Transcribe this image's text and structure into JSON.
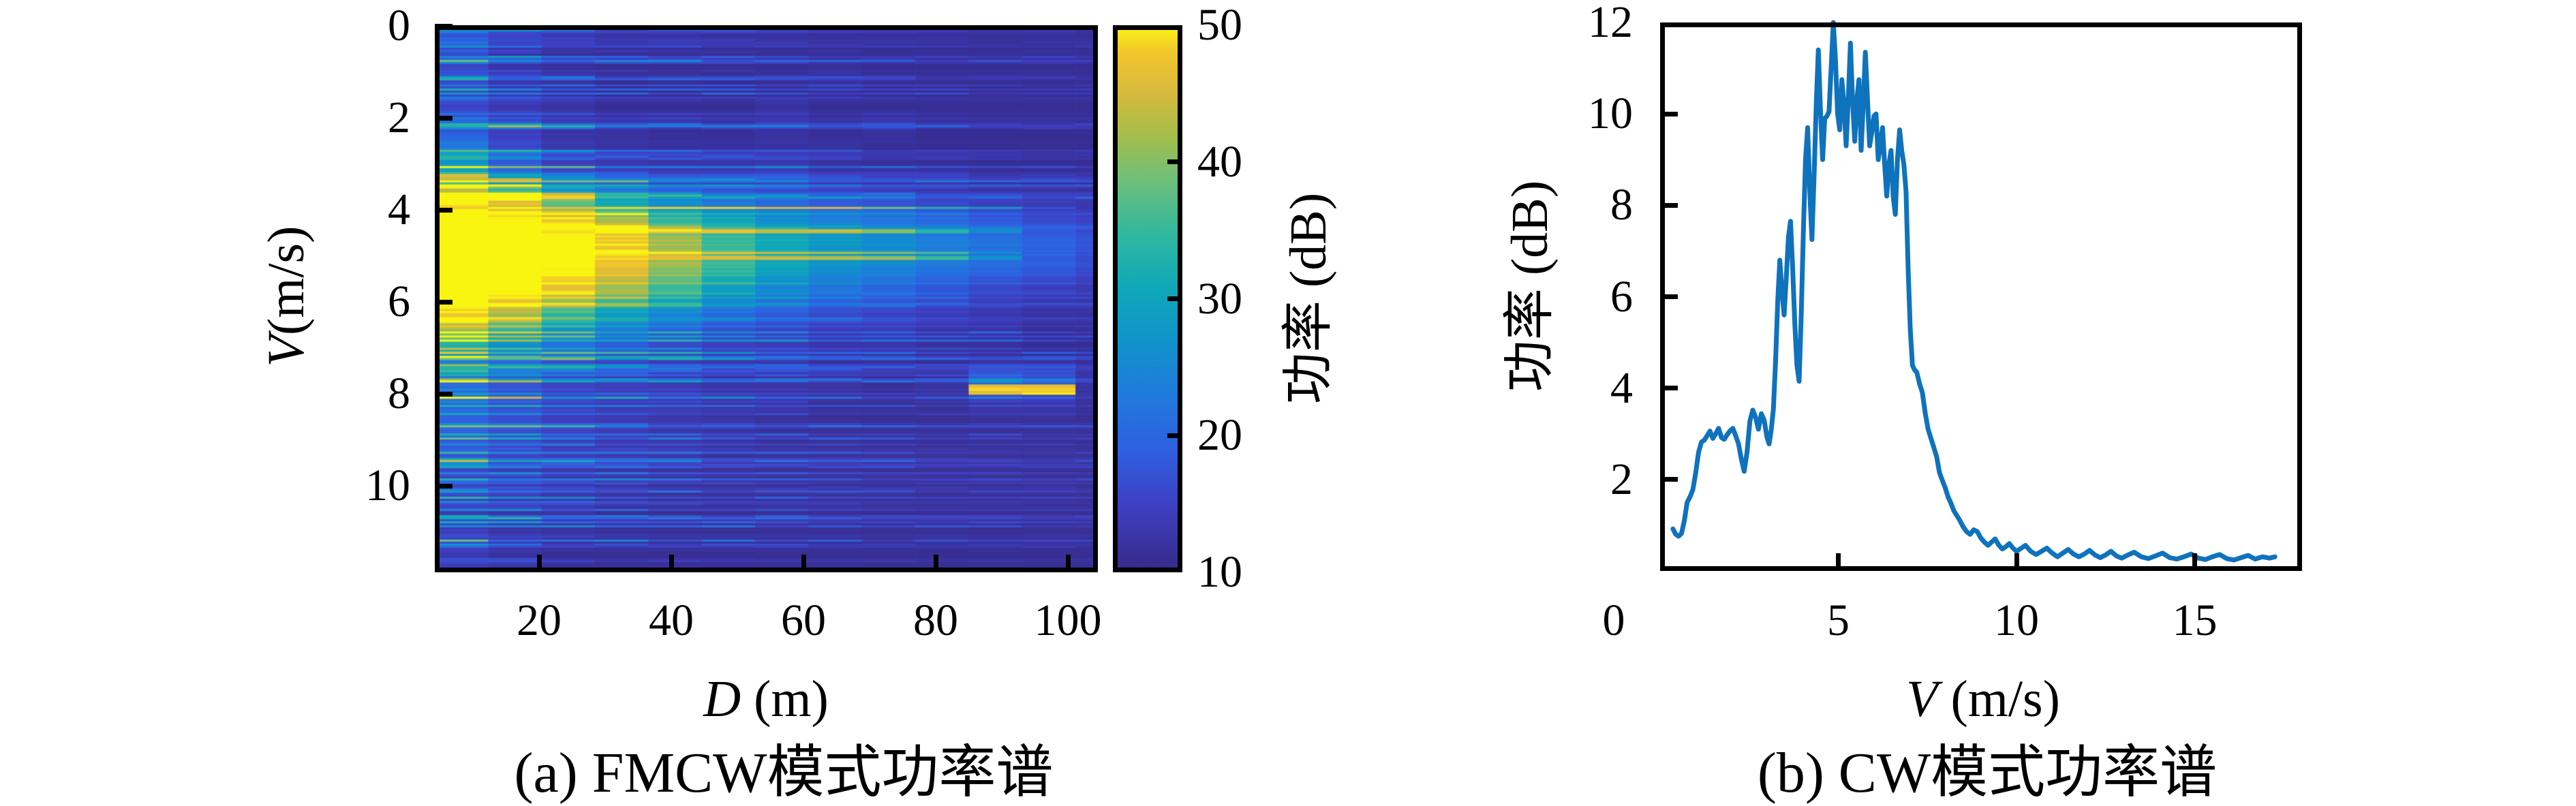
{
  "figures": {
    "a": {
      "caption": "(a) FMCW模式功率谱",
      "xlabel_var": "D",
      "xlabel_unit": " (m)",
      "ylabel_var": "V",
      "ylabel_unit": " (m/s)",
      "colorbar_label": "功率 (dB)"
    },
    "b": {
      "caption": "(b) CW模式功率谱",
      "xlabel_var": "V",
      "xlabel_unit": " (m/s)",
      "ylabel": "功率 (dB)"
    }
  },
  "chart_data": [
    {
      "type": "heatmap",
      "title": "",
      "xlabel": "D (m)",
      "ylabel": "V (m/s)",
      "x_range_m": [
        4.2,
        104.5
      ],
      "y_range_mps": [
        0,
        11.88
      ],
      "x_ticks": [
        20,
        40,
        60,
        80,
        100
      ],
      "y_ticks": [
        0,
        2,
        4,
        6,
        8,
        10
      ],
      "y_axis_reversed": true,
      "grid": false,
      "colorbar": {
        "label": "功率 (dB)",
        "range_db": [
          10,
          50
        ],
        "ticks": [
          10,
          20,
          30,
          40,
          50
        ]
      },
      "colormap_name": "parula",
      "colormap_stops": [
        [
          0.0,
          "#352a87"
        ],
        [
          0.12,
          "#3e3fc2"
        ],
        [
          0.22,
          "#2e5fe0"
        ],
        [
          0.32,
          "#2179de"
        ],
        [
          0.42,
          "#1092cb"
        ],
        [
          0.52,
          "#0fa8b8"
        ],
        [
          0.62,
          "#31b89f"
        ],
        [
          0.72,
          "#71bf78"
        ],
        [
          0.8,
          "#a6bd4a"
        ],
        [
          0.88,
          "#d9ba3c"
        ],
        [
          0.95,
          "#f2c52c"
        ],
        [
          1.0,
          "#f9f511"
        ]
      ],
      "envelope_grid": {
        "v_centers_mps": [
          0.25,
          0.75,
          1.25,
          1.75,
          2.25,
          2.75,
          3.25,
          3.75,
          4.25,
          4.75,
          5.25,
          5.75,
          6.25,
          6.75,
          7.25,
          7.75,
          8.25,
          8.75,
          9.25,
          9.75,
          10.25,
          10.75,
          11.25,
          11.75
        ],
        "d_centers_m": [
          8,
          16,
          24,
          32,
          40,
          48,
          56,
          64,
          72,
          80,
          88,
          96,
          102
        ],
        "values_db": [
          [
            16,
            13,
            12,
            11,
            11,
            11,
            11,
            11,
            11,
            11,
            11,
            11,
            11
          ],
          [
            15,
            12,
            11,
            11,
            11,
            11,
            11,
            11,
            11,
            11,
            11,
            11,
            11
          ],
          [
            16,
            13,
            12,
            11,
            11,
            11,
            11,
            12,
            11,
            11,
            11,
            11,
            11
          ],
          [
            15,
            13,
            12,
            11,
            11,
            11,
            12,
            11,
            11,
            11,
            11,
            11,
            11
          ],
          [
            17,
            14,
            12,
            12,
            11,
            11,
            12,
            11,
            12,
            11,
            11,
            11,
            11
          ],
          [
            24,
            16,
            13,
            12,
            12,
            12,
            12,
            12,
            11,
            11,
            11,
            11,
            11
          ],
          [
            30,
            20,
            15,
            14,
            13,
            13,
            14,
            12,
            12,
            12,
            11,
            11,
            11
          ],
          [
            46,
            40,
            30,
            24,
            20,
            18,
            16,
            15,
            14,
            13,
            12,
            12,
            12
          ],
          [
            50,
            50,
            48,
            42,
            34,
            30,
            26,
            24,
            22,
            20,
            18,
            16,
            15
          ],
          [
            50,
            50,
            50,
            47,
            40,
            34,
            30,
            27,
            25,
            23,
            21,
            19,
            17
          ],
          [
            50,
            50,
            50,
            46,
            40,
            34,
            29,
            26,
            24,
            22,
            20,
            18,
            16
          ],
          [
            50,
            50,
            46,
            40,
            34,
            28,
            24,
            21,
            19,
            17,
            15,
            14,
            13
          ],
          [
            48,
            42,
            34,
            28,
            24,
            20,
            18,
            16,
            15,
            14,
            13,
            12,
            12
          ],
          [
            38,
            30,
            24,
            20,
            17,
            15,
            14,
            13,
            13,
            12,
            12,
            11,
            11
          ],
          [
            24,
            20,
            17,
            15,
            14,
            13,
            13,
            12,
            12,
            11,
            11,
            11,
            11
          ],
          [
            20,
            17,
            15,
            14,
            13,
            12,
            12,
            12,
            11,
            12,
            20,
            18,
            12
          ],
          [
            19,
            16,
            14,
            13,
            13,
            12,
            12,
            11,
            11,
            11,
            12,
            12,
            11
          ],
          [
            18,
            16,
            14,
            13,
            12,
            12,
            11,
            11,
            11,
            11,
            11,
            11,
            11
          ],
          [
            16,
            14,
            13,
            12,
            12,
            11,
            11,
            11,
            11,
            11,
            11,
            11,
            11
          ],
          [
            14,
            13,
            12,
            12,
            11,
            11,
            11,
            11,
            11,
            11,
            11,
            11,
            11
          ],
          [
            14,
            13,
            12,
            11,
            11,
            11,
            11,
            11,
            11,
            11,
            11,
            11,
            11
          ],
          [
            13,
            12,
            12,
            11,
            11,
            11,
            11,
            11,
            11,
            11,
            11,
            11,
            11
          ],
          [
            14,
            12,
            11,
            11,
            11,
            11,
            11,
            11,
            11,
            11,
            11,
            11,
            11
          ],
          [
            13,
            12,
            11,
            11,
            11,
            11,
            11,
            11,
            11,
            11,
            11,
            11,
            11
          ]
        ]
      },
      "hotspot": {
        "v_mps": [
          7.82,
          8.02
        ],
        "d_m": [
          86,
          98
        ],
        "db": 46
      },
      "texture": {
        "seed": 1337,
        "rows": 268,
        "cols": 13,
        "streak_w_per_col": [
          1,
          0.8,
          0.66,
          0.56,
          0.5,
          0.44,
          0.39,
          0.34,
          0.3,
          0.27,
          0.24,
          0.21,
          0.19
        ],
        "finger_w_per_col": [
          1,
          1,
          1,
          1,
          1,
          0.97,
          0.93,
          0.9,
          0.82,
          0.72,
          0.55,
          0.35,
          0.22
        ]
      }
    },
    {
      "type": "line",
      "title": "",
      "xlabel": "V (m/s)",
      "ylabel": "功率 (dB)",
      "xlim": [
        0,
        18.02
      ],
      "ylim": [
        0,
        12
      ],
      "x_ticks": [
        0,
        5,
        10,
        15
      ],
      "y_ticks": [
        2,
        4,
        6,
        8,
        10,
        12
      ],
      "grid": false,
      "line_color": "#0f72bd",
      "points": [
        [
          0.36,
          0.92
        ],
        [
          0.44,
          0.8
        ],
        [
          0.52,
          0.76
        ],
        [
          0.6,
          0.82
        ],
        [
          0.68,
          1.1
        ],
        [
          0.76,
          1.5
        ],
        [
          0.84,
          1.62
        ],
        [
          0.92,
          1.78
        ],
        [
          1.0,
          2.15
        ],
        [
          1.08,
          2.6
        ],
        [
          1.16,
          2.82
        ],
        [
          1.24,
          2.86
        ],
        [
          1.32,
          2.96
        ],
        [
          1.4,
          3.06
        ],
        [
          1.48,
          2.9
        ],
        [
          1.56,
          3.0
        ],
        [
          1.64,
          3.12
        ],
        [
          1.72,
          2.92
        ],
        [
          1.8,
          2.88
        ],
        [
          1.88,
          2.98
        ],
        [
          1.96,
          3.06
        ],
        [
          2.04,
          3.12
        ],
        [
          2.12,
          2.96
        ],
        [
          2.2,
          2.78
        ],
        [
          2.28,
          2.45
        ],
        [
          2.36,
          2.18
        ],
        [
          2.44,
          2.6
        ],
        [
          2.52,
          3.28
        ],
        [
          2.6,
          3.52
        ],
        [
          2.68,
          3.36
        ],
        [
          2.76,
          3.1
        ],
        [
          2.84,
          3.44
        ],
        [
          2.92,
          3.3
        ],
        [
          3.0,
          2.92
        ],
        [
          3.06,
          2.78
        ],
        [
          3.12,
          3.1
        ],
        [
          3.18,
          3.55
        ],
        [
          3.24,
          4.6
        ],
        [
          3.3,
          5.9
        ],
        [
          3.36,
          6.8
        ],
        [
          3.42,
          6.1
        ],
        [
          3.48,
          5.6
        ],
        [
          3.54,
          6.4
        ],
        [
          3.6,
          7.3
        ],
        [
          3.66,
          7.65
        ],
        [
          3.72,
          6.6
        ],
        [
          3.78,
          5.4
        ],
        [
          3.84,
          4.5
        ],
        [
          3.9,
          4.15
        ],
        [
          3.96,
          5.6
        ],
        [
          4.02,
          7.4
        ],
        [
          4.08,
          9.0
        ],
        [
          4.14,
          9.7
        ],
        [
          4.2,
          8.3
        ],
        [
          4.26,
          7.25
        ],
        [
          4.32,
          8.6
        ],
        [
          4.38,
          10.2
        ],
        [
          4.44,
          11.4
        ],
        [
          4.5,
          10.1
        ],
        [
          4.56,
          9.0
        ],
        [
          4.62,
          9.9
        ],
        [
          4.68,
          9.95
        ],
        [
          4.74,
          10.05
        ],
        [
          4.8,
          11.0
        ],
        [
          4.86,
          12.0
        ],
        [
          4.92,
          11.2
        ],
        [
          4.98,
          10.0
        ],
        [
          5.04,
          9.65
        ],
        [
          5.1,
          10.75
        ],
        [
          5.16,
          10.2
        ],
        [
          5.22,
          9.3
        ],
        [
          5.28,
          10.3
        ],
        [
          5.34,
          11.55
        ],
        [
          5.4,
          10.3
        ],
        [
          5.46,
          9.4
        ],
        [
          5.52,
          10.3
        ],
        [
          5.58,
          10.75
        ],
        [
          5.64,
          9.2
        ],
        [
          5.7,
          10.2
        ],
        [
          5.76,
          11.35
        ],
        [
          5.82,
          10.3
        ],
        [
          5.88,
          9.3
        ],
        [
          5.94,
          9.6
        ],
        [
          6.0,
          9.95
        ],
        [
          6.06,
          10.0
        ],
        [
          6.12,
          9.0
        ],
        [
          6.18,
          9.3
        ],
        [
          6.24,
          9.7
        ],
        [
          6.3,
          8.9
        ],
        [
          6.36,
          8.2
        ],
        [
          6.42,
          8.9
        ],
        [
          6.48,
          9.2
        ],
        [
          6.54,
          8.2
        ],
        [
          6.6,
          7.8
        ],
        [
          6.66,
          9.0
        ],
        [
          6.72,
          9.65
        ],
        [
          6.78,
          9.2
        ],
        [
          6.84,
          8.9
        ],
        [
          6.9,
          8.3
        ],
        [
          6.96,
          6.6
        ],
        [
          7.02,
          5.3
        ],
        [
          7.08,
          4.5
        ],
        [
          7.14,
          4.4
        ],
        [
          7.2,
          4.35
        ],
        [
          7.28,
          4.1
        ],
        [
          7.36,
          3.9
        ],
        [
          7.44,
          3.45
        ],
        [
          7.52,
          3.1
        ],
        [
          7.6,
          2.9
        ],
        [
          7.68,
          2.7
        ],
        [
          7.76,
          2.5
        ],
        [
          7.84,
          2.15
        ],
        [
          7.92,
          1.98
        ],
        [
          8.0,
          1.82
        ],
        [
          8.08,
          1.62
        ],
        [
          8.16,
          1.48
        ],
        [
          8.24,
          1.32
        ],
        [
          8.32,
          1.22
        ],
        [
          8.4,
          1.12
        ],
        [
          8.5,
          0.97
        ],
        [
          8.6,
          0.86
        ],
        [
          8.7,
          0.8
        ],
        [
          8.8,
          0.9
        ],
        [
          8.9,
          0.86
        ],
        [
          9.0,
          0.72
        ],
        [
          9.1,
          0.63
        ],
        [
          9.2,
          0.56
        ],
        [
          9.3,
          0.63
        ],
        [
          9.4,
          0.7
        ],
        [
          9.5,
          0.57
        ],
        [
          9.6,
          0.48
        ],
        [
          9.7,
          0.53
        ],
        [
          9.8,
          0.6
        ],
        [
          9.9,
          0.5
        ],
        [
          10.0,
          0.43
        ],
        [
          10.12,
          0.49
        ],
        [
          10.25,
          0.56
        ],
        [
          10.4,
          0.43
        ],
        [
          10.55,
          0.36
        ],
        [
          10.7,
          0.43
        ],
        [
          10.85,
          0.5
        ],
        [
          11.0,
          0.39
        ],
        [
          11.15,
          0.31
        ],
        [
          11.3,
          0.39
        ],
        [
          11.45,
          0.47
        ],
        [
          11.6,
          0.37
        ],
        [
          11.75,
          0.31
        ],
        [
          11.9,
          0.37
        ],
        [
          12.05,
          0.45
        ],
        [
          12.2,
          0.35
        ],
        [
          12.35,
          0.29
        ],
        [
          12.5,
          0.35
        ],
        [
          12.65,
          0.43
        ],
        [
          12.8,
          0.33
        ],
        [
          12.95,
          0.28
        ],
        [
          13.1,
          0.34
        ],
        [
          13.3,
          0.41
        ],
        [
          13.5,
          0.31
        ],
        [
          13.7,
          0.27
        ],
        [
          13.9,
          0.33
        ],
        [
          14.1,
          0.39
        ],
        [
          14.3,
          0.29
        ],
        [
          14.5,
          0.26
        ],
        [
          14.7,
          0.31
        ],
        [
          14.9,
          0.37
        ],
        [
          15.1,
          0.28
        ],
        [
          15.3,
          0.25
        ],
        [
          15.5,
          0.31
        ],
        [
          15.7,
          0.36
        ],
        [
          15.9,
          0.27
        ],
        [
          16.1,
          0.24
        ],
        [
          16.3,
          0.29
        ],
        [
          16.5,
          0.34
        ],
        [
          16.7,
          0.26
        ],
        [
          16.9,
          0.31
        ],
        [
          17.1,
          0.28
        ],
        [
          17.25,
          0.31
        ]
      ]
    }
  ]
}
